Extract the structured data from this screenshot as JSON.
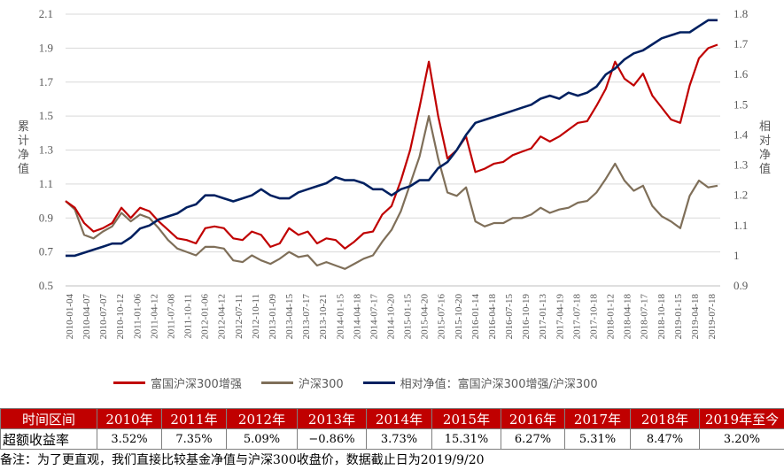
{
  "chart_data": {
    "type": "line",
    "x_ticks": [
      "2010-01-04",
      "2010-04-07",
      "2010-07-07",
      "2010-10-12",
      "2011-01-06",
      "2011-04-12",
      "2011-07-08",
      "2011-10-11",
      "2012-01-06",
      "2012-04-12",
      "2012-07-11",
      "2012-10-11",
      "2013-01-09",
      "2013-04-15",
      "2013-07-17",
      "2013-10-21",
      "2014-01-15",
      "2014-04-18",
      "2014-07-17",
      "2014-10-20",
      "2015-01-15",
      "2015-04-20",
      "2015-07-16",
      "2015-10-20",
      "2016-01-14",
      "2016-04-18",
      "2016-07-15",
      "2016-10-19",
      "2017-01-13",
      "2017-04-19",
      "2017-07-18",
      "2017-10-18",
      "2018-01-12",
      "2018-04-18",
      "2018-07-17",
      "2018-10-18",
      "2019-01-15",
      "2019-04-18",
      "2019-07-18"
    ],
    "y_left": {
      "label": "累计净值",
      "ticks": [
        "2.1",
        "1.9",
        "1.7",
        "1.5",
        "1.3",
        "1.1",
        "0.9",
        "0.7",
        "0.5"
      ],
      "range": [
        0.5,
        2.1
      ]
    },
    "y_right": {
      "label": "相对净值",
      "ticks": [
        "1.8",
        "1.7",
        "1.6",
        "1.5",
        "1.4",
        "1.3",
        "1.2",
        "1.1",
        "1",
        "0.9"
      ],
      "range": [
        0.9,
        1.8
      ]
    },
    "grid": "horizontal",
    "legend_position": "bottom",
    "series": [
      {
        "name": "富国沪深300增强",
        "axis": "left",
        "color": "#c00000",
        "values": [
          1.0,
          0.96,
          0.87,
          0.82,
          0.84,
          0.87,
          0.96,
          0.9,
          0.96,
          0.94,
          0.88,
          0.83,
          0.78,
          0.77,
          0.75,
          0.84,
          0.85,
          0.84,
          0.78,
          0.77,
          0.82,
          0.8,
          0.73,
          0.75,
          0.84,
          0.8,
          0.82,
          0.75,
          0.78,
          0.77,
          0.72,
          0.76,
          0.81,
          0.82,
          0.92,
          0.97,
          1.12,
          1.3,
          1.55,
          1.82,
          1.5,
          1.25,
          1.3,
          1.38,
          1.17,
          1.19,
          1.22,
          1.23,
          1.27,
          1.29,
          1.31,
          1.38,
          1.35,
          1.38,
          1.42,
          1.46,
          1.47,
          1.56,
          1.66,
          1.82,
          1.72,
          1.68,
          1.75,
          1.62,
          1.55,
          1.48,
          1.46,
          1.68,
          1.84,
          1.9,
          1.92
        ]
      },
      {
        "name": "沪深300",
        "axis": "left",
        "color": "#7f6f59",
        "values": [
          1.0,
          0.95,
          0.8,
          0.78,
          0.82,
          0.85,
          0.93,
          0.88,
          0.92,
          0.9,
          0.84,
          0.77,
          0.72,
          0.7,
          0.68,
          0.73,
          0.73,
          0.72,
          0.65,
          0.64,
          0.68,
          0.65,
          0.63,
          0.66,
          0.7,
          0.67,
          0.68,
          0.62,
          0.64,
          0.62,
          0.6,
          0.63,
          0.66,
          0.68,
          0.76,
          0.83,
          0.94,
          1.1,
          1.26,
          1.5,
          1.25,
          1.05,
          1.03,
          1.08,
          0.88,
          0.85,
          0.87,
          0.87,
          0.9,
          0.9,
          0.92,
          0.96,
          0.93,
          0.95,
          0.96,
          0.99,
          1.0,
          1.05,
          1.13,
          1.22,
          1.12,
          1.06,
          1.09,
          0.97,
          0.91,
          0.88,
          0.84,
          1.03,
          1.12,
          1.08,
          1.09
        ]
      },
      {
        "name": "相对净值：富国沪深300增强/沪深300",
        "axis": "right",
        "color": "#002060",
        "values": [
          1.0,
          1.0,
          1.01,
          1.02,
          1.03,
          1.04,
          1.04,
          1.06,
          1.09,
          1.1,
          1.12,
          1.13,
          1.14,
          1.16,
          1.17,
          1.2,
          1.2,
          1.19,
          1.18,
          1.19,
          1.2,
          1.22,
          1.2,
          1.19,
          1.19,
          1.21,
          1.22,
          1.23,
          1.24,
          1.26,
          1.25,
          1.25,
          1.24,
          1.22,
          1.22,
          1.2,
          1.22,
          1.23,
          1.25,
          1.25,
          1.29,
          1.31,
          1.35,
          1.4,
          1.44,
          1.45,
          1.46,
          1.47,
          1.48,
          1.49,
          1.5,
          1.52,
          1.53,
          1.52,
          1.54,
          1.53,
          1.54,
          1.56,
          1.6,
          1.62,
          1.65,
          1.67,
          1.68,
          1.7,
          1.72,
          1.73,
          1.74,
          1.74,
          1.76,
          1.78,
          1.78
        ]
      }
    ]
  },
  "table": {
    "headers": [
      "时间区间",
      "2010年",
      "2011年",
      "2012年",
      "2013年",
      "2014年",
      "2015年",
      "2016年",
      "2017年",
      "2018年",
      "2019年至今"
    ],
    "row_label": "超额收益率",
    "values": [
      "3.52%",
      "7.35%",
      "5.09%",
      "−0.86%",
      "3.73%",
      "15.31%",
      "6.27%",
      "5.31%",
      "8.47%",
      "3.20%"
    ],
    "negative_color": "#c00000",
    "header_bg": "#c00000"
  },
  "note": "备注：为了更直观，我们直接比较基金净值与沪深300收盘价，数据截止日为2019/9/20"
}
